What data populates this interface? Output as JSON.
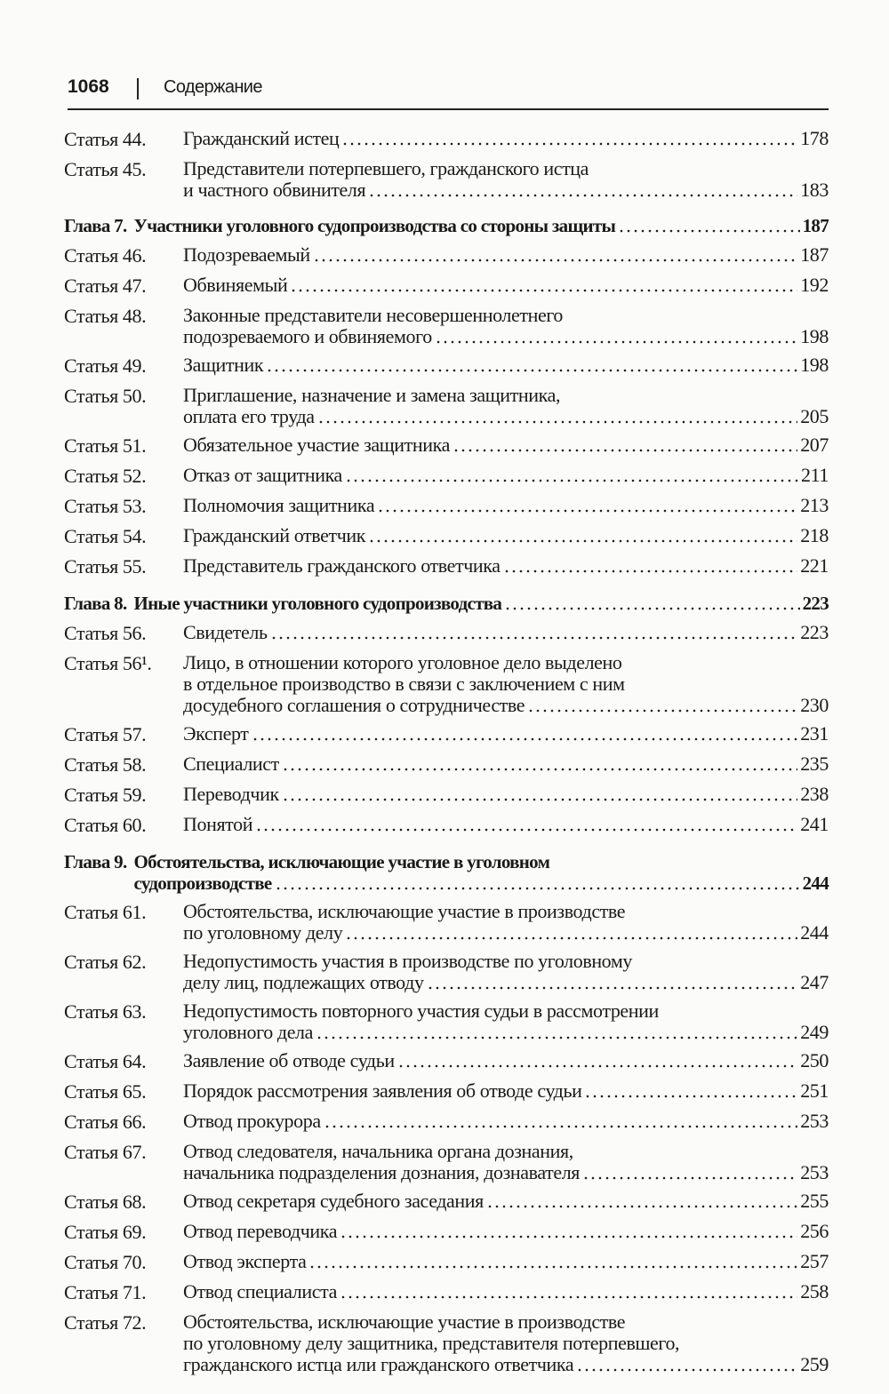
{
  "header": {
    "page_number": "1068",
    "title": "Содержание"
  },
  "entries": [
    {
      "type": "article",
      "label": "Статья 44.",
      "lines": [
        "Гражданский истец"
      ],
      "page": "178"
    },
    {
      "type": "article",
      "label": "Статья 45.",
      "lines": [
        "Представители потерпевшего, гражданского истца",
        "и частного обвинителя"
      ],
      "page": "183"
    },
    {
      "type": "chapter",
      "label": "Глава 7.",
      "lines": [
        "Участники уголовного судопроизводства со стороны защиты"
      ],
      "page": "187"
    },
    {
      "type": "article",
      "label": "Статья 46.",
      "lines": [
        "Подозреваемый"
      ],
      "page": "187"
    },
    {
      "type": "article",
      "label": "Статья 47.",
      "lines": [
        "Обвиняемый"
      ],
      "page": "192"
    },
    {
      "type": "article",
      "label": "Статья 48.",
      "lines": [
        "Законные представители несовершеннолетнего",
        "подозреваемого и обвиняемого"
      ],
      "page": "198"
    },
    {
      "type": "article",
      "label": "Статья 49.",
      "lines": [
        "Защитник"
      ],
      "page": "198"
    },
    {
      "type": "article",
      "label": "Статья 50.",
      "lines": [
        "Приглашение, назначение и замена защитника,",
        "оплата его труда"
      ],
      "page": "205"
    },
    {
      "type": "article",
      "label": "Статья 51.",
      "lines": [
        "Обязательное участие защитника"
      ],
      "page": "207"
    },
    {
      "type": "article",
      "label": "Статья 52.",
      "lines": [
        "Отказ от защитника"
      ],
      "page": "211"
    },
    {
      "type": "article",
      "label": "Статья 53.",
      "lines": [
        "Полномочия защитника"
      ],
      "page": "213"
    },
    {
      "type": "article",
      "label": "Статья 54.",
      "lines": [
        "Гражданский ответчик"
      ],
      "page": "218"
    },
    {
      "type": "article",
      "label": "Статья 55.",
      "lines": [
        "Представитель гражданского ответчика"
      ],
      "page": "221"
    },
    {
      "type": "chapter",
      "label": "Глава 8.",
      "lines": [
        "Иные участники уголовного судопроизводства"
      ],
      "page": "223"
    },
    {
      "type": "article",
      "label": "Статья 56.",
      "lines": [
        "Свидетель"
      ],
      "page": "223"
    },
    {
      "type": "article",
      "label": "Статья 56¹.",
      "lines": [
        "Лицо, в отношении которого уголовное дело выделено",
        "в отдельное производство в связи с заключением с ним",
        "досудебного соглашения о сотрудничестве"
      ],
      "page": "230"
    },
    {
      "type": "article",
      "label": "Статья 57.",
      "lines": [
        "Эксперт"
      ],
      "page": "231"
    },
    {
      "type": "article",
      "label": "Статья 58.",
      "lines": [
        "Специалист"
      ],
      "page": "235"
    },
    {
      "type": "article",
      "label": "Статья 59.",
      "lines": [
        "Переводчик"
      ],
      "page": "238"
    },
    {
      "type": "article",
      "label": "Статья 60.",
      "lines": [
        "Понятой"
      ],
      "page": "241"
    },
    {
      "type": "chapter",
      "label": "Глава 9.",
      "lines": [
        "Обстоятельства, исключающие участие в уголовном",
        "судопроизводстве"
      ],
      "page": "244"
    },
    {
      "type": "article",
      "label": "Статья 61.",
      "lines": [
        "Обстоятельства, исключающие участие в производстве",
        "по уголовному делу"
      ],
      "page": "244"
    },
    {
      "type": "article",
      "label": "Статья 62.",
      "lines": [
        "Недопустимость участия в производстве по уголовному",
        "делу лиц, подлежащих отводу"
      ],
      "page": "247"
    },
    {
      "type": "article",
      "label": "Статья 63.",
      "lines": [
        "Недопустимость повторного участия судьи в рассмотрении",
        "уголовного дела"
      ],
      "page": "249"
    },
    {
      "type": "article",
      "label": "Статья 64.",
      "lines": [
        "Заявление об отводе судьи"
      ],
      "page": "250"
    },
    {
      "type": "article",
      "label": "Статья 65.",
      "lines": [
        "Порядок рассмотрения заявления об отводе судьи"
      ],
      "page": "251"
    },
    {
      "type": "article",
      "label": "Статья 66.",
      "lines": [
        "Отвод прокурора"
      ],
      "page": "253"
    },
    {
      "type": "article",
      "label": "Статья 67.",
      "lines": [
        "Отвод следователя, начальника органа дознания,",
        "начальника подразделения дознания, дознавателя"
      ],
      "page": "253"
    },
    {
      "type": "article",
      "label": "Статья 68.",
      "lines": [
        "Отвод секретаря судебного заседания"
      ],
      "page": "255"
    },
    {
      "type": "article",
      "label": "Статья 69.",
      "lines": [
        "Отвод переводчика"
      ],
      "page": "256"
    },
    {
      "type": "article",
      "label": "Статья 70.",
      "lines": [
        "Отвод эксперта"
      ],
      "page": "257"
    },
    {
      "type": "article",
      "label": "Статья 71.",
      "lines": [
        "Отвод специалиста"
      ],
      "page": "258"
    },
    {
      "type": "article",
      "label": "Статья 72.",
      "lines": [
        "Обстоятельства, исключающие участие в производстве",
        "по уголовному делу защитника, представителя потерпевшего,",
        "гражданского истца или гражданского ответчика"
      ],
      "page": "259"
    }
  ]
}
